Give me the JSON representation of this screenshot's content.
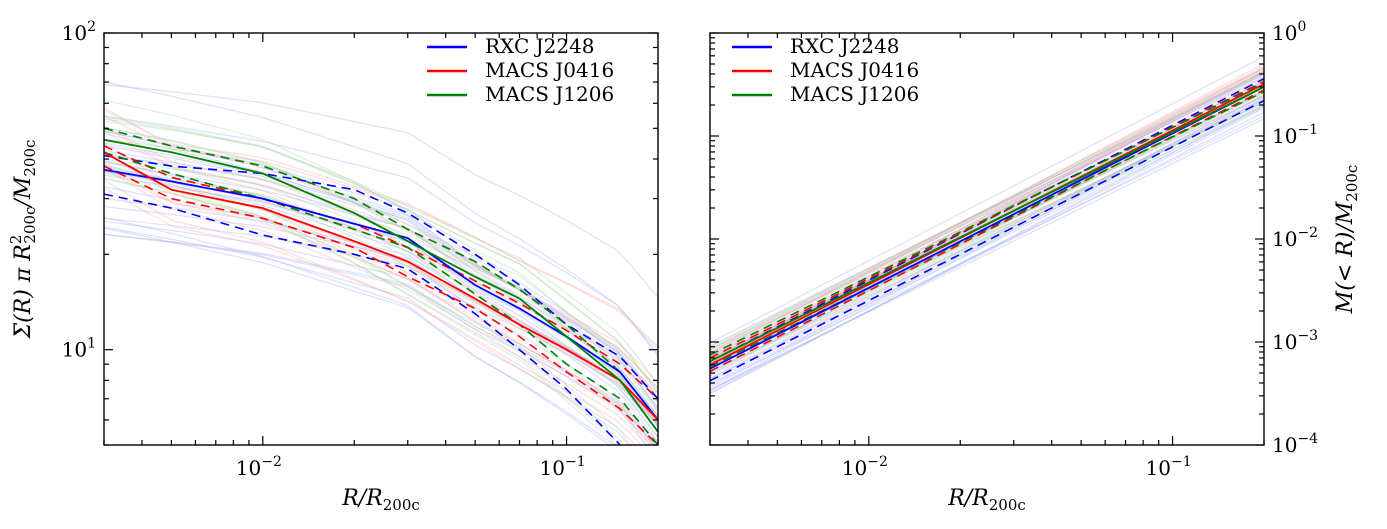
{
  "chart_data": [
    {
      "type": "line",
      "xscale": "log",
      "yscale": "log",
      "xlim": [
        0.003,
        0.2
      ],
      "ylim": [
        5,
        100
      ],
      "xlabel": "R/R200c",
      "ylabel": "Σ(R) π R²200c / M200c",
      "x_ticks": [
        {
          "value": 0.01,
          "base": "10",
          "exp": "−2"
        },
        {
          "value": 0.1,
          "base": "10",
          "exp": "−1"
        }
      ],
      "y_ticks": [
        {
          "value": 10,
          "base": "10",
          "exp": "1"
        },
        {
          "value": 100,
          "base": "10",
          "exp": "2"
        }
      ],
      "y_axis_side": "left",
      "grid": false,
      "legend": "top-right",
      "x": [
        0.003,
        0.005,
        0.01,
        0.02,
        0.03,
        0.05,
        0.07,
        0.1,
        0.15,
        0.2
      ],
      "series": [
        {
          "name": "RXC J2248",
          "color": "#0000ff",
          "values": [
            37,
            34,
            30,
            25,
            22.5,
            16,
            13.5,
            11,
            8.5,
            6
          ],
          "band_upper": [
            41,
            38,
            36,
            32,
            27,
            20,
            16,
            12,
            9.5,
            7
          ],
          "band_lower": [
            31,
            28,
            23,
            20,
            18,
            13,
            10,
            7.5,
            5,
            3.5
          ]
        },
        {
          "name": "MACS J0416",
          "color": "#ff0000",
          "values": [
            42,
            32,
            28,
            22,
            19,
            14.5,
            12,
            10,
            8,
            6
          ],
          "band_upper": [
            44,
            35,
            30,
            25,
            21,
            16.5,
            14,
            11.5,
            9,
            7
          ],
          "band_lower": [
            38,
            30,
            26,
            21,
            17,
            13.5,
            11,
            8.5,
            6.5,
            5
          ]
        },
        {
          "name": "MACS J1206",
          "color": "#008000",
          "values": [
            46,
            42,
            36,
            27,
            22,
            17,
            14.5,
            11,
            8,
            5.5
          ],
          "band_upper": [
            50,
            44,
            38,
            30,
            24,
            19,
            15.5,
            12,
            8.5,
            6
          ],
          "band_lower": [
            42,
            36,
            30,
            24,
            21,
            15,
            12,
            9,
            7,
            5
          ]
        }
      ]
    },
    {
      "type": "line",
      "xscale": "log",
      "yscale": "log",
      "xlim": [
        0.003,
        0.2
      ],
      "ylim": [
        0.0001,
        1
      ],
      "xlabel": "R/R200c",
      "ylabel": "M(<R) / M200c",
      "x_ticks": [
        {
          "value": 0.01,
          "base": "10",
          "exp": "−2"
        },
        {
          "value": 0.1,
          "base": "10",
          "exp": "−1"
        }
      ],
      "y_ticks": [
        {
          "value": 0.0001,
          "base": "10",
          "exp": "−4"
        },
        {
          "value": 0.001,
          "base": "10",
          "exp": "−3"
        },
        {
          "value": 0.01,
          "base": "10",
          "exp": "−2"
        },
        {
          "value": 0.1,
          "base": "10",
          "exp": "−1"
        },
        {
          "value": 1,
          "base": "10",
          "exp": "0"
        }
      ],
      "y_axis_side": "right",
      "grid": false,
      "legend": "top-left",
      "x": [
        0.003,
        0.2
      ],
      "series": [
        {
          "name": "RXC J2248",
          "color": "#0000ff",
          "values": [
            0.00055,
            0.3
          ],
          "band_upper": [
            0.00065,
            0.36
          ],
          "band_lower": [
            0.00042,
            0.22
          ]
        },
        {
          "name": "MACS J0416",
          "color": "#ff0000",
          "values": [
            0.0006,
            0.32
          ],
          "band_upper": [
            0.0007,
            0.34
          ],
          "band_lower": [
            0.00052,
            0.28
          ]
        },
        {
          "name": "MACS J1206",
          "color": "#008000",
          "values": [
            0.00065,
            0.3
          ],
          "band_upper": [
            0.00075,
            0.33
          ],
          "band_lower": [
            0.00058,
            0.27
          ]
        }
      ]
    }
  ]
}
